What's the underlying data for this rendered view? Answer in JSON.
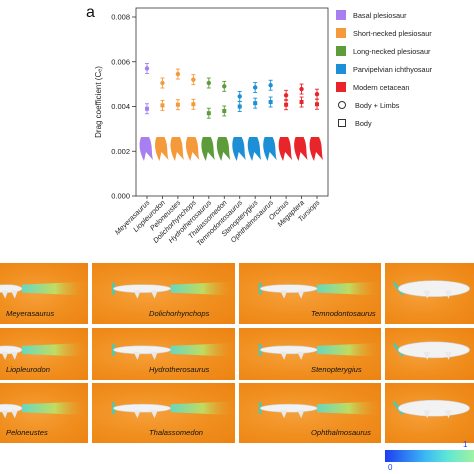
{
  "panel_letter": "a",
  "chart_data": {
    "type": "scatter",
    "title": "",
    "xlabel": "",
    "ylabel": "Drag coefficient (Cₑ)",
    "ylim": [
      0,
      0.008
    ],
    "yticks": [
      "0.000",
      "0.002",
      "0.004",
      "0.006",
      "0.008"
    ],
    "ytick_values": [
      0,
      0.002,
      0.004,
      0.006,
      0.008
    ],
    "grid": false,
    "legend_position": "right",
    "categories": [
      "Meyerasaurus",
      "Liopleurodon",
      "Peloneustes",
      "Dolichorhynchops",
      "Hydrotherosaurus",
      "Thalassomedon",
      "Temnodontosaurus",
      "Stenopterygius",
      "Ophthalmosaurus",
      "Orcinus",
      "Megaptera",
      "Tursiops"
    ],
    "groups": [
      "Basal plesiosaur",
      "Short-necked plesiosaur",
      "Short-necked plesiosaur",
      "Short-necked plesiosaur",
      "Long-necked plesiosaur",
      "Long-necked plesiosaur",
      "Parvipelvian ichthyosaur",
      "Parvipelvian ichthyosaur",
      "Parvipelvian ichthyosaur",
      "Modern cetacean",
      "Modern cetacean",
      "Modern cetacean"
    ],
    "series": [
      {
        "name": "Body + Limbs",
        "marker": "circle",
        "values": [
          0.0057,
          0.00505,
          0.00545,
          0.0052,
          0.00505,
          0.0049,
          0.00445,
          0.00485,
          0.00495,
          0.0045,
          0.00478,
          0.00455
        ]
      },
      {
        "name": "Body",
        "marker": "square",
        "values": [
          0.0039,
          0.00405,
          0.00408,
          0.0041,
          0.0037,
          0.0038,
          0.004,
          0.00415,
          0.0042,
          0.00408,
          0.0042,
          0.0041
        ]
      }
    ],
    "silhouette_level": 0.0021,
    "group_colors": {
      "Basal plesiosaur": "#a77ff0",
      "Short-necked plesiosaur": "#f49a3a",
      "Long-necked plesiosaur": "#5e9b3a",
      "Parvipelvian ichthyosaur": "#1d8fd6",
      "Modern cetacean": "#e8252a"
    }
  },
  "legend": {
    "items": [
      {
        "label": "Basal plesiosaur",
        "color": "#a77ff0"
      },
      {
        "label": "Short-necked plesiosaur",
        "color": "#f49a3a"
      },
      {
        "label": "Long-necked plesiosaur",
        "color": "#5e9b3a"
      },
      {
        "label": "Parvipelvian ichthyosaur",
        "color": "#1d8fd6"
      },
      {
        "label": "Modern cetacean",
        "color": "#e8252a"
      }
    ],
    "markers": [
      {
        "label": "Body + Limbs",
        "shape": "circle"
      },
      {
        "label": "Body",
        "shape": "square"
      }
    ]
  },
  "cfd_panels": {
    "columns": [
      {
        "tiles": [
          "Meyerasaurus",
          "Liopleurodon",
          "Peloneustes"
        ]
      },
      {
        "tiles": [
          "Dolichorhynchops",
          "Hydrotherosaurus",
          "Thalassomedon"
        ]
      },
      {
        "tiles": [
          "Temnodontosaurus",
          "Stenopterygius",
          "Ophthalmosaurus"
        ]
      },
      {
        "tiles": [
          "",
          "",
          ""
        ]
      }
    ],
    "colorbar": {
      "min_label": "0",
      "max_label": "1"
    }
  }
}
